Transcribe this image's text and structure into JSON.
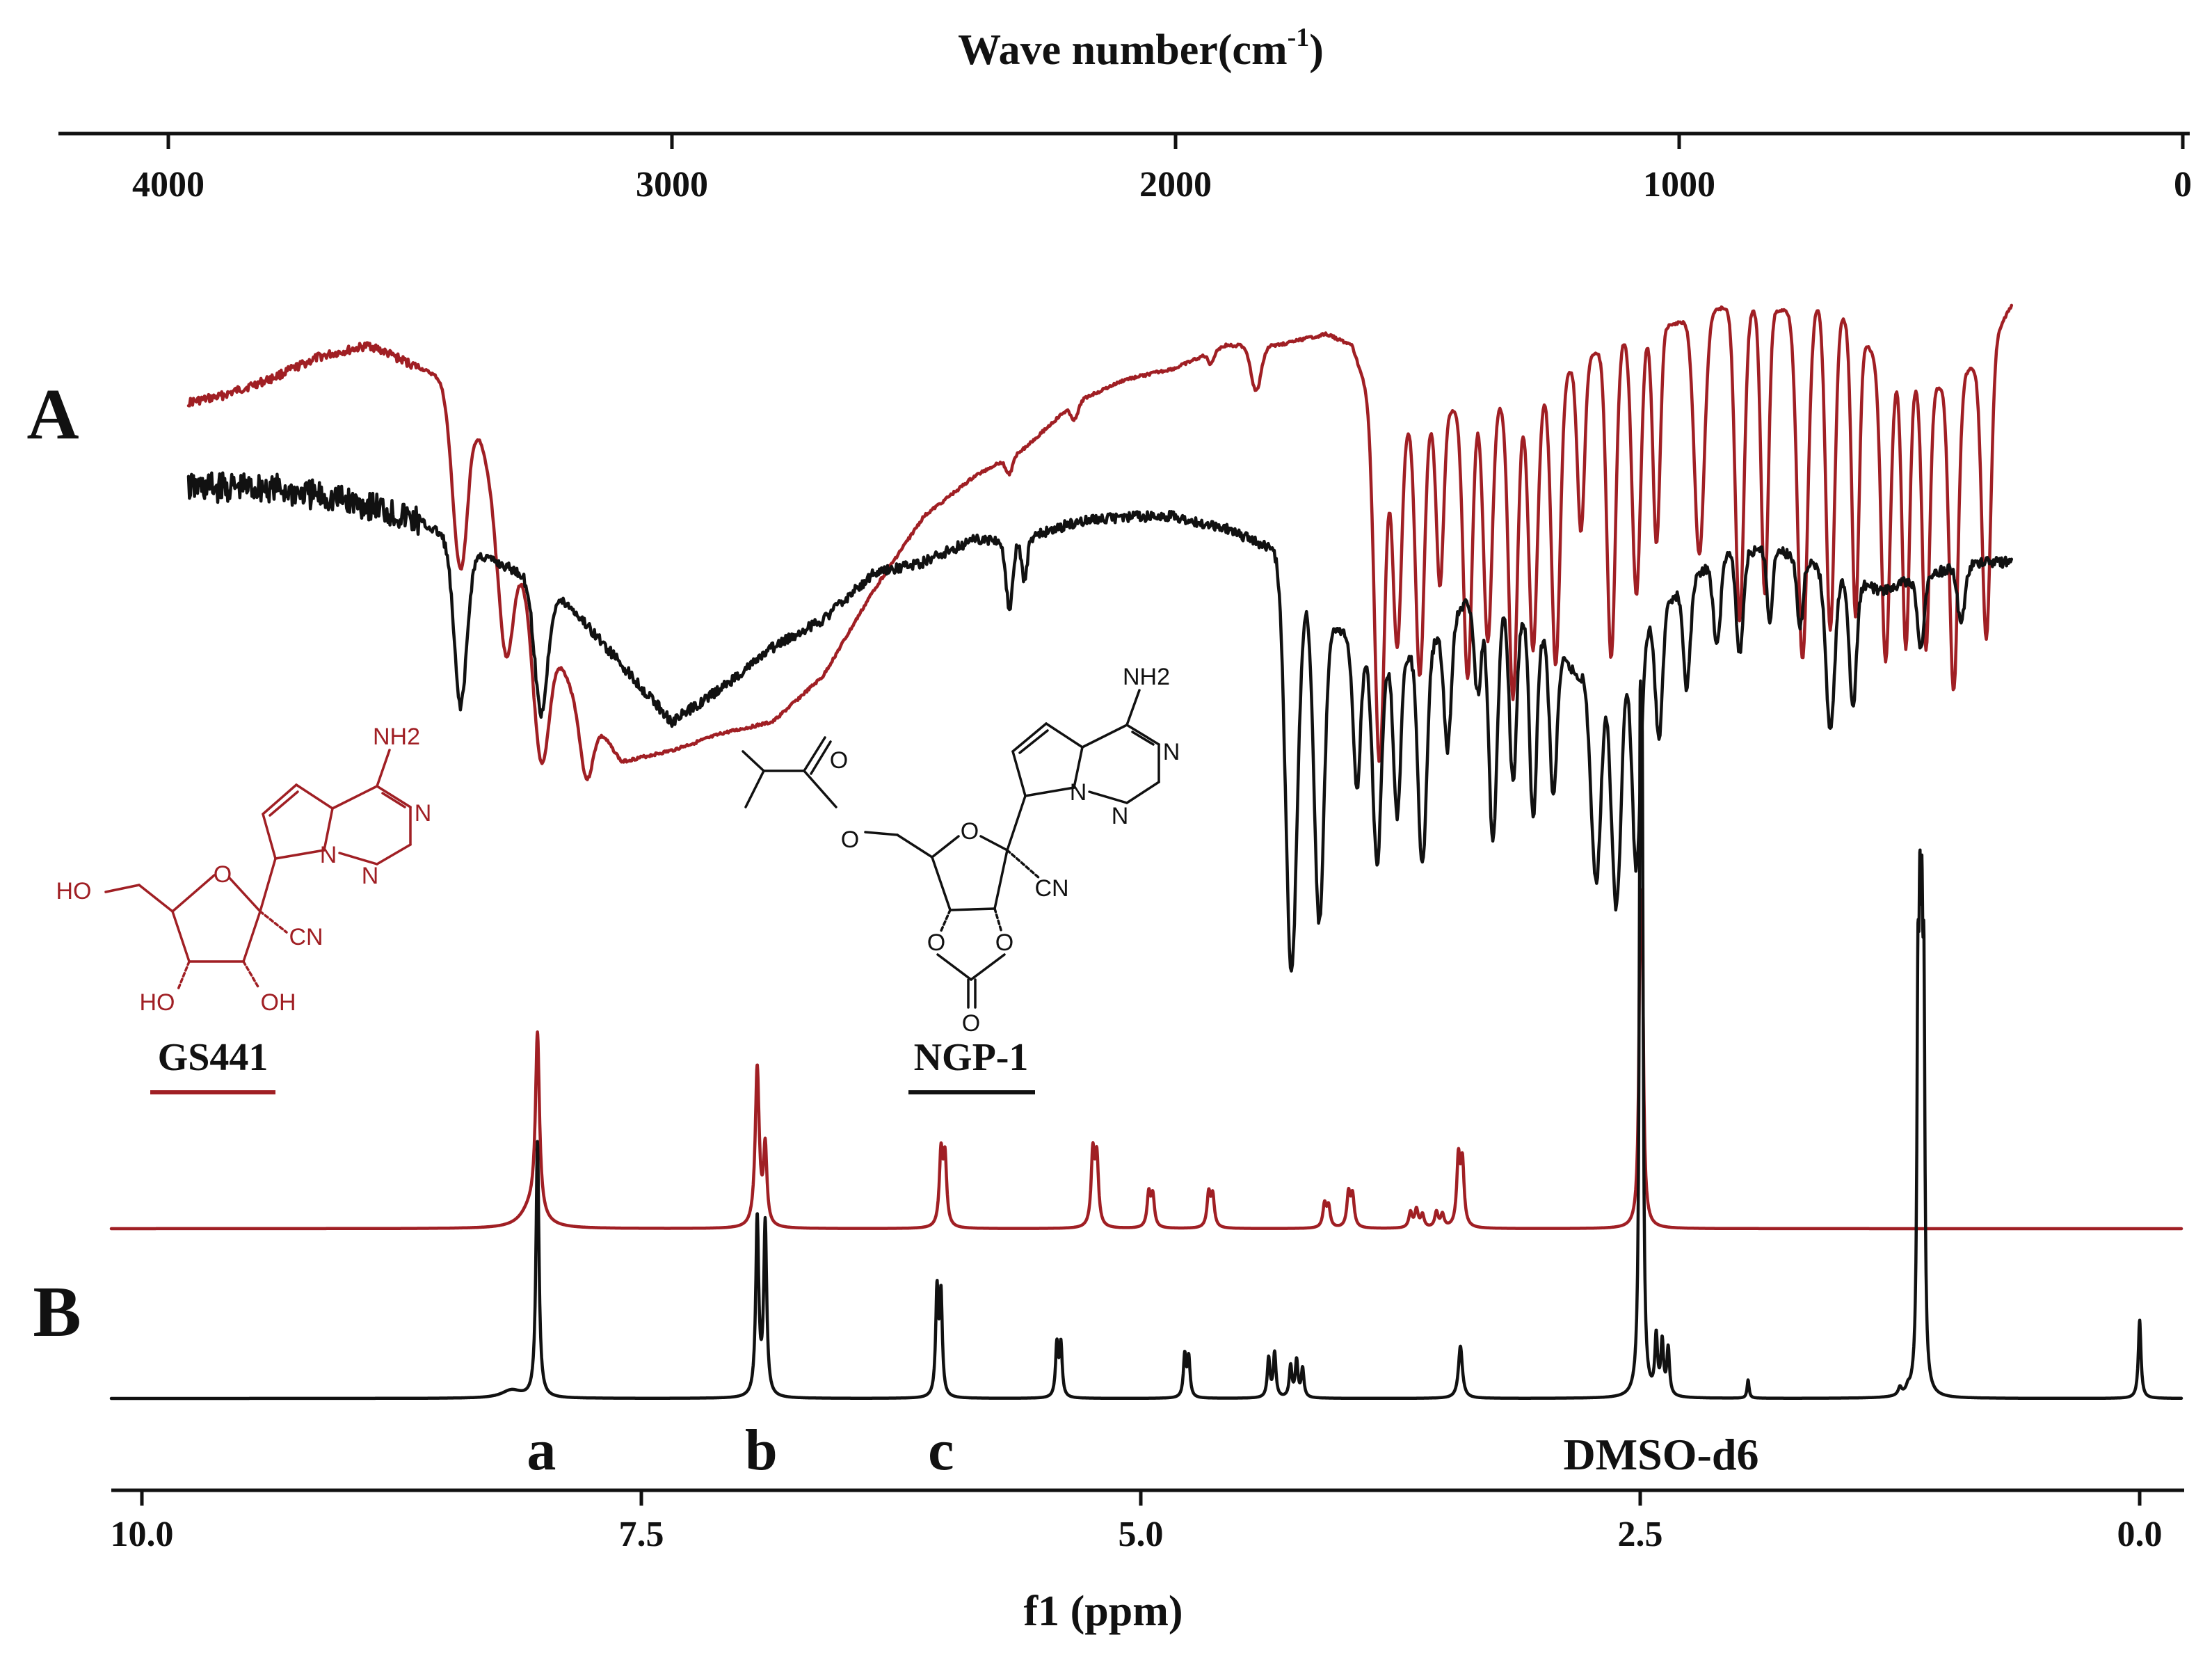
{
  "panel_labels": {
    "a": "A",
    "b": "B"
  },
  "colors": {
    "gs441": "#a01f24",
    "ngp1": "#111111"
  },
  "chart_data": [
    {
      "type": "line",
      "panel": "A",
      "xlabel_main": "Wave number(cm",
      "xlabel_sup": "-1",
      "xlabel_tail": ")",
      "xlim": [
        4000,
        0
      ],
      "x_ticks": [
        {
          "value": 4000,
          "label": "4000"
        },
        {
          "value": 3000,
          "label": "3000"
        },
        {
          "value": 2000,
          "label": "2000"
        },
        {
          "value": 1000,
          "label": "1000"
        },
        {
          "value": 0,
          "label": "0"
        }
      ],
      "series": [
        {
          "key": "gs441",
          "color": "#a01f24",
          "baseline": 0.12,
          "range": [
            3960,
            340
          ],
          "noise": 0.005,
          "anchors": [
            [
              3960,
              0.12
            ],
            [
              3900,
              0.11
            ],
            [
              3800,
              0.08
            ],
            [
              3700,
              0.04
            ],
            [
              3600,
              0.02
            ],
            [
              3400,
              0.1
            ],
            [
              3350,
              0.3
            ],
            [
              3200,
              0.62
            ],
            [
              3100,
              0.75
            ],
            [
              3000,
              0.73
            ],
            [
              2900,
              0.7
            ],
            [
              2800,
              0.68
            ],
            [
              2700,
              0.6
            ],
            [
              2600,
              0.45
            ],
            [
              2500,
              0.32
            ],
            [
              2400,
              0.25
            ],
            [
              2300,
              0.2
            ],
            [
              2200,
              0.12
            ],
            [
              2100,
              0.08
            ],
            [
              2000,
              0.06
            ],
            [
              1900,
              0.02
            ],
            [
              1800,
              0.02
            ],
            [
              1700,
              0.0
            ],
            [
              1650,
              0.02
            ],
            [
              1600,
              0.15
            ],
            [
              1500,
              0.15
            ],
            [
              1400,
              0.12
            ],
            [
              1300,
              0.12
            ],
            [
              1200,
              0.05
            ],
            [
              1100,
              0.0
            ],
            [
              1000,
              -0.02
            ],
            [
              900,
              -0.05
            ],
            [
              800,
              -0.04
            ],
            [
              700,
              -0.06
            ],
            [
              600,
              0.05
            ],
            [
              500,
              0.1
            ],
            [
              400,
              0.05
            ],
            [
              340,
              -0.05
            ]
          ],
          "peaks": [
            [
              3420,
              0.32,
              22
            ],
            [
              3330,
              0.22,
              20
            ],
            [
              3260,
              0.26,
              22
            ],
            [
              3170,
              0.12,
              18
            ],
            [
              2330,
              0.03,
              10
            ],
            [
              2200,
              0.03,
              10
            ],
            [
              1930,
              0.02,
              8
            ],
            [
              1840,
              0.08,
              14
            ],
            [
              1595,
              0.6,
              14
            ],
            [
              1560,
              0.4,
              12
            ],
            [
              1515,
              0.45,
              12
            ],
            [
              1475,
              0.3,
              10
            ],
            [
              1420,
              0.48,
              12
            ],
            [
              1380,
              0.42,
              12
            ],
            [
              1330,
              0.52,
              12
            ],
            [
              1290,
              0.44,
              12
            ],
            [
              1245,
              0.5,
              12
            ],
            [
              1195,
              0.3,
              10
            ],
            [
              1135,
              0.55,
              12
            ],
            [
              1085,
              0.46,
              12
            ],
            [
              1045,
              0.38,
              10
            ],
            [
              960,
              0.42,
              14
            ],
            [
              880,
              0.55,
              12
            ],
            [
              830,
              0.5,
              10
            ],
            [
              755,
              0.62,
              14
            ],
            [
              700,
              0.58,
              12
            ],
            [
              650,
              0.5,
              10
            ],
            [
              590,
              0.52,
              12
            ],
            [
              550,
              0.48,
              10
            ],
            [
              510,
              0.46,
              10
            ],
            [
              455,
              0.55,
              12
            ],
            [
              390,
              0.5,
              12
            ]
          ]
        },
        {
          "key": "ngp1",
          "color": "#111111",
          "baseline": 0.3,
          "range": [
            3960,
            340
          ],
          "noise": 0.018,
          "anchors": [
            [
              3960,
              0.27
            ],
            [
              3800,
              0.27
            ],
            [
              3600,
              0.3
            ],
            [
              3500,
              0.33
            ],
            [
              3400,
              0.38
            ],
            [
              3300,
              0.42
            ],
            [
              3200,
              0.48
            ],
            [
              3100,
              0.58
            ],
            [
              3000,
              0.68
            ],
            [
              2900,
              0.62
            ],
            [
              2800,
              0.55
            ],
            [
              2700,
              0.5
            ],
            [
              2600,
              0.42
            ],
            [
              2500,
              0.4
            ],
            [
              2400,
              0.36
            ],
            [
              2300,
              0.36
            ],
            [
              2200,
              0.33
            ],
            [
              2100,
              0.32
            ],
            [
              2000,
              0.32
            ],
            [
              1900,
              0.34
            ],
            [
              1800,
              0.38
            ],
            [
              1700,
              0.5
            ],
            [
              1600,
              0.58
            ],
            [
              1500,
              0.55
            ],
            [
              1400,
              0.45
            ],
            [
              1300,
              0.5
            ],
            [
              1200,
              0.6
            ],
            [
              1100,
              0.55
            ],
            [
              1000,
              0.45
            ],
            [
              900,
              0.38
            ],
            [
              800,
              0.38
            ],
            [
              700,
              0.42
            ],
            [
              600,
              0.45
            ],
            [
              500,
              0.42
            ],
            [
              400,
              0.4
            ],
            [
              340,
              0.4
            ]
          ],
          "peaks": [
            [
              3420,
              0.28,
              18
            ],
            [
              3260,
              0.22,
              18
            ],
            [
              2330,
              0.12,
              10
            ],
            [
              2300,
              0.07,
              8
            ],
            [
              1770,
              0.7,
              16
            ],
            [
              1715,
              0.55,
              14
            ],
            [
              1640,
              0.25,
              10
            ],
            [
              1600,
              0.35,
              12
            ],
            [
              1560,
              0.28,
              10
            ],
            [
              1510,
              0.38,
              12
            ],
            [
              1460,
              0.22,
              10
            ],
            [
              1400,
              0.18,
              10
            ],
            [
              1370,
              0.42,
              12
            ],
            [
              1330,
              0.3,
              10
            ],
            [
              1290,
              0.34,
              10
            ],
            [
              1250,
              0.26,
              10
            ],
            [
              1165,
              0.38,
              14
            ],
            [
              1125,
              0.44,
              14
            ],
            [
              1085,
              0.4,
              12
            ],
            [
              1040,
              0.22,
              10
            ],
            [
              985,
              0.18,
              10
            ],
            [
              925,
              0.15,
              10
            ],
            [
              880,
              0.18,
              10
            ],
            [
              820,
              0.12,
              8
            ],
            [
              760,
              0.12,
              8
            ],
            [
              700,
              0.28,
              12
            ],
            [
              655,
              0.22,
              10
            ],
            [
              520,
              0.12,
              10
            ],
            [
              440,
              0.1,
              10
            ]
          ]
        }
      ]
    },
    {
      "type": "line",
      "panel": "B",
      "xlabel": "f1 (ppm)",
      "xlim": [
        10.2,
        -0.2
      ],
      "x_ticks": [
        {
          "value": 10.0,
          "label": "10.0"
        },
        {
          "value": 7.5,
          "label": "7.5"
        },
        {
          "value": 5.0,
          "label": "5.0"
        },
        {
          "value": 2.5,
          "label": "2.5"
        },
        {
          "value": 0.0,
          "label": "0.0"
        }
      ],
      "annotations": [
        {
          "text": "a",
          "x": 8.0
        },
        {
          "text": "b",
          "x": 6.9
        },
        {
          "text": "c",
          "x": 6.0
        },
        {
          "text": "DMSO-d6",
          "sub": "",
          "x": 2.5
        }
      ],
      "series": [
        {
          "key": "gs441",
          "color": "#a01f24",
          "range": [
            10.0,
            -0.2
          ],
          "peaks": [
            [
              8.02,
              0.7,
              0.012
            ],
            [
              8.05,
              0.08,
              0.06
            ],
            [
              6.92,
              0.62,
              0.012
            ],
            [
              6.88,
              0.3,
              0.01
            ],
            [
              6.0,
              0.28,
              0.01
            ],
            [
              5.98,
              0.26,
              0.01
            ],
            [
              5.24,
              0.28,
              0.01
            ],
            [
              5.22,
              0.26,
              0.01
            ],
            [
              4.96,
              0.13,
              0.01
            ],
            [
              4.94,
              0.12,
              0.01
            ],
            [
              4.66,
              0.13,
              0.01
            ],
            [
              4.64,
              0.12,
              0.01
            ],
            [
              4.08,
              0.09,
              0.01
            ],
            [
              4.06,
              0.08,
              0.01
            ],
            [
              3.96,
              0.13,
              0.01
            ],
            [
              3.94,
              0.12,
              0.01
            ],
            [
              3.65,
              0.06,
              0.01
            ],
            [
              3.62,
              0.07,
              0.01
            ],
            [
              3.59,
              0.05,
              0.01
            ],
            [
              3.52,
              0.06,
              0.01
            ],
            [
              3.49,
              0.05,
              0.01
            ],
            [
              3.41,
              0.26,
              0.01
            ],
            [
              3.39,
              0.24,
              0.01
            ],
            [
              2.5,
              0.95,
              0.008
            ],
            [
              2.49,
              0.85,
              0.008
            ]
          ]
        },
        {
          "key": "ngp1",
          "color": "#111111",
          "range": [
            10.0,
            -0.2
          ],
          "peaks": [
            [
              8.15,
              0.03,
              0.06
            ],
            [
              8.02,
              0.98,
              0.009
            ],
            [
              6.92,
              0.68,
              0.009
            ],
            [
              6.88,
              0.66,
              0.009
            ],
            [
              6.02,
              0.4,
              0.008
            ],
            [
              6.0,
              0.38,
              0.008
            ],
            [
              5.42,
              0.2,
              0.008
            ],
            [
              5.4,
              0.2,
              0.008
            ],
            [
              4.78,
              0.16,
              0.008
            ],
            [
              4.76,
              0.15,
              0.008
            ],
            [
              4.36,
              0.15,
              0.008
            ],
            [
              4.33,
              0.17,
              0.008
            ],
            [
              4.25,
              0.12,
              0.008
            ],
            [
              4.22,
              0.14,
              0.008
            ],
            [
              4.19,
              0.11,
              0.008
            ],
            [
              3.4,
              0.2,
              0.012
            ],
            [
              2.5,
              2.2,
              0.006
            ],
            [
              2.49,
              2.0,
              0.006
            ],
            [
              2.42,
              0.22,
              0.008
            ],
            [
              2.39,
              0.2,
              0.008
            ],
            [
              2.36,
              0.18,
              0.008
            ],
            [
              1.96,
              0.07,
              0.006
            ],
            [
              1.2,
              0.03,
              0.01
            ],
            [
              1.16,
              0.02,
              0.01
            ],
            [
              1.11,
              1.3,
              0.006
            ],
            [
              1.1,
              1.32,
              0.006
            ],
            [
              1.09,
              1.28,
              0.006
            ],
            [
              1.08,
              1.3,
              0.006
            ],
            [
              0.0,
              0.3,
              0.008
            ]
          ]
        }
      ]
    }
  ],
  "structures": {
    "gs441": {
      "label": "GS441",
      "atoms": {
        "ho5": "HO",
        "o_ring": "O",
        "cn": "CN",
        "ho3": "HO",
        "oh2": "OH",
        "n1": "N",
        "n2": "N",
        "n3": "N",
        "nh2": "NH2"
      }
    },
    "ngp1": {
      "label": "NGP-1",
      "atoms": {
        "o_carbonyl": "O",
        "o_ester": "O",
        "o_ring": "O",
        "cn": "CN",
        "o_a": "O",
        "o_b": "O",
        "o_carbonate": "O",
        "n1": "N",
        "n2": "N",
        "n3": "N",
        "nh2": "NH2"
      }
    }
  }
}
